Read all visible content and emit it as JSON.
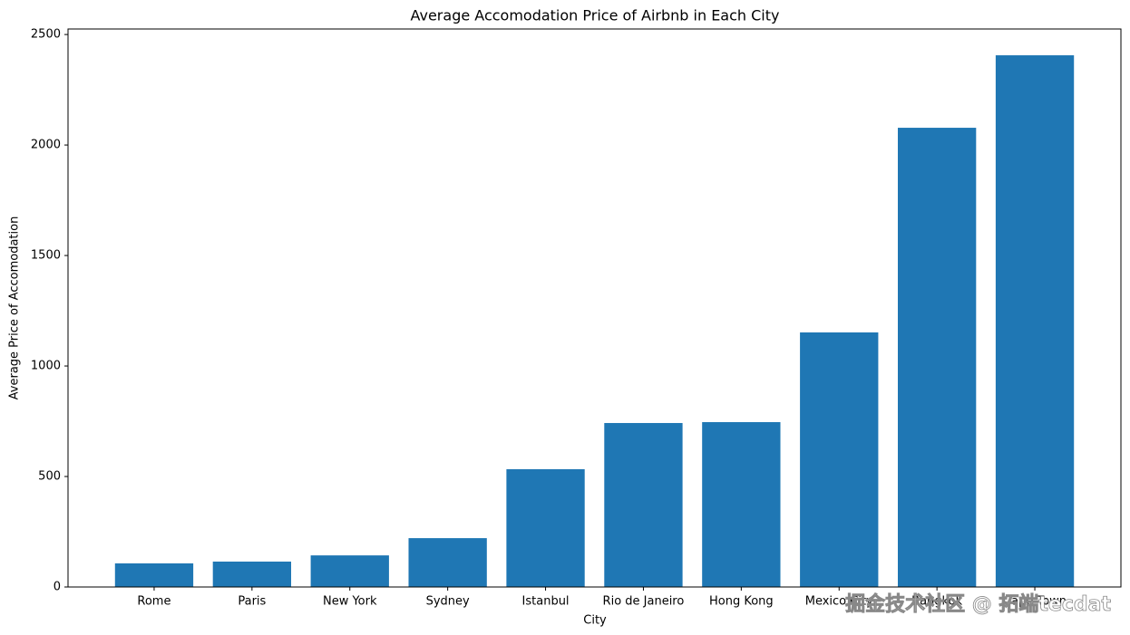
{
  "chart_data": {
    "type": "bar",
    "title": "Average Accomodation Price of Airbnb in Each City",
    "xlabel": "City",
    "ylabel": "Average Price of Accomodation",
    "categories": [
      "Rome",
      "Paris",
      "New York",
      "Sydney",
      "Istanbul",
      "Rio de Janeiro",
      "Hong Kong",
      "Mexico City",
      "Bangkok",
      "Cape Town"
    ],
    "values": [
      107,
      115,
      143,
      221,
      533,
      742,
      746,
      1152,
      2078,
      2406
    ],
    "color": "#1f77b4",
    "ylim": [
      0,
      2525
    ],
    "yticks": [
      0,
      500,
      1000,
      1500,
      2000,
      2500
    ],
    "grid": false,
    "watermark": "掘金技术社区 @ 拓端tecdat"
  }
}
